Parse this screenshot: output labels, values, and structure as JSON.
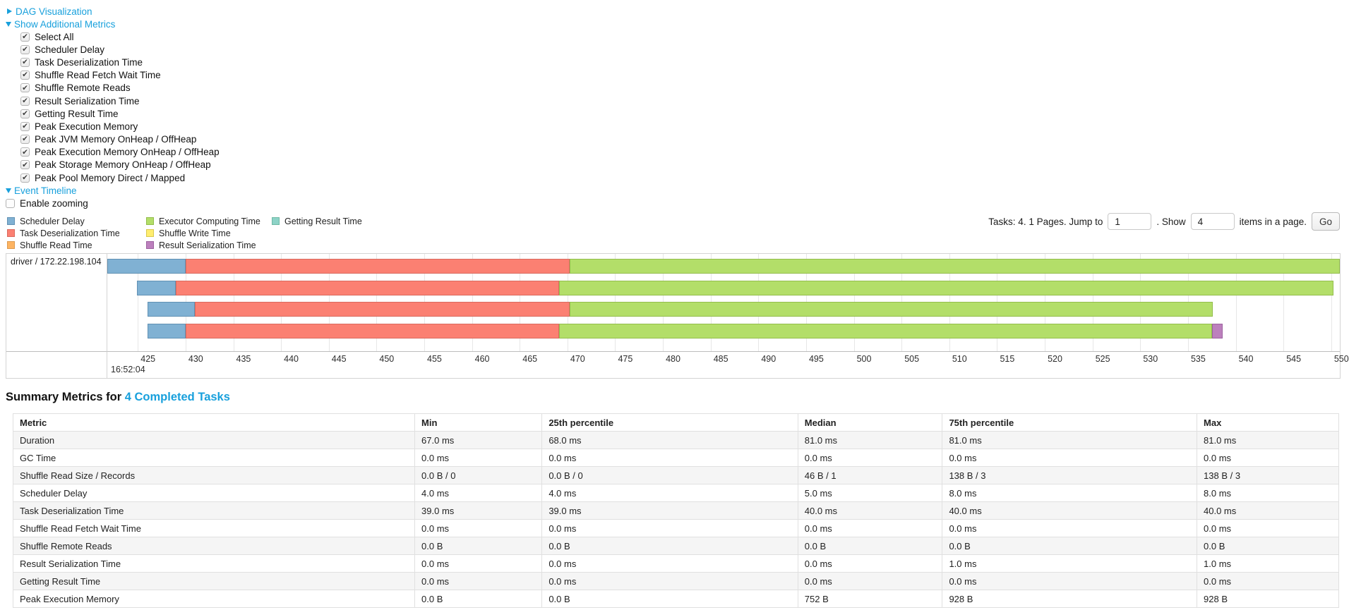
{
  "toggles": {
    "dag": "DAG Visualization",
    "additional_metrics": "Show Additional Metrics",
    "event_timeline": "Event Timeline"
  },
  "metrics_panel": {
    "items": [
      "Select All",
      "Scheduler Delay",
      "Task Deserialization Time",
      "Shuffle Read Fetch Wait Time",
      "Shuffle Remote Reads",
      "Result Serialization Time",
      "Getting Result Time",
      "Peak Execution Memory",
      "Peak JVM Memory OnHeap / OffHeap",
      "Peak Execution Memory OnHeap / OffHeap",
      "Peak Storage Memory OnHeap / OffHeap",
      "Peak Pool Memory Direct / Mapped"
    ],
    "all_checked": true
  },
  "enable_zooming": {
    "label": "Enable zooming",
    "checked": false
  },
  "palette": {
    "scheduler_delay": {
      "fill": "#80b1d3",
      "stroke": "#6191b4"
    },
    "task_deserialization": {
      "fill": "#fb8072",
      "stroke": "#d96a5e"
    },
    "shuffle_read": {
      "fill": "#fdb462",
      "stroke": "#dd9a4f"
    },
    "executor_computing": {
      "fill": "#b3de69",
      "stroke": "#93bd4c"
    },
    "shuffle_write": {
      "fill": "#ffed6f",
      "stroke": "#d9c94f"
    },
    "result_serialization": {
      "fill": "#bc80bd",
      "stroke": "#9d62a0"
    },
    "getting_result": {
      "fill": "#8dd3c7",
      "stroke": "#6fb9a5"
    }
  },
  "legend": {
    "columns": [
      [
        {
          "key": "scheduler_delay",
          "label": "Scheduler Delay"
        },
        {
          "key": "task_deserialization",
          "label": "Task Deserialization Time"
        },
        {
          "key": "shuffle_read",
          "label": "Shuffle Read Time"
        }
      ],
      [
        {
          "key": "executor_computing",
          "label": "Executor Computing Time"
        },
        {
          "key": "shuffle_write",
          "label": "Shuffle Write Time"
        },
        {
          "key": "result_serialization",
          "label": "Result Serialization Time"
        }
      ],
      [
        {
          "key": "getting_result",
          "label": "Getting Result Time"
        }
      ]
    ]
  },
  "pagination": {
    "prefix": "Tasks: 4. 1 Pages. Jump to",
    "jump_value": "1",
    "mid": ". Show",
    "show_value": "4",
    "suffix": "items in a page.",
    "go_label": "Go"
  },
  "timeline": {
    "row_label": "driver / 172.22.198.104",
    "axis": {
      "min": 421.8,
      "max": 550.9,
      "ticks": [
        425,
        430,
        435,
        440,
        445,
        450,
        455,
        460,
        465,
        470,
        475,
        480,
        485,
        490,
        495,
        500,
        505,
        510,
        515,
        520,
        525,
        530,
        535,
        540,
        545,
        550
      ],
      "sub_label": "16:52:04"
    },
    "tasks": [
      {
        "segments": [
          {
            "key": "scheduler_delay",
            "start": 421.8,
            "end": 430.0
          },
          {
            "key": "task_deserialization",
            "start": 430.0,
            "end": 470.2
          },
          {
            "key": "executor_computing",
            "start": 470.2,
            "end": 550.9
          }
        ]
      },
      {
        "segments": [
          {
            "key": "scheduler_delay",
            "start": 424.9,
            "end": 429.0
          },
          {
            "key": "task_deserialization",
            "start": 429.0,
            "end": 469.1
          },
          {
            "key": "executor_computing",
            "start": 469.1,
            "end": 550.2
          }
        ]
      },
      {
        "segments": [
          {
            "key": "scheduler_delay",
            "start": 426.0,
            "end": 431.0
          },
          {
            "key": "task_deserialization",
            "start": 431.0,
            "end": 470.2
          },
          {
            "key": "executor_computing",
            "start": 470.2,
            "end": 537.6
          }
        ]
      },
      {
        "segments": [
          {
            "key": "scheduler_delay",
            "start": 426.0,
            "end": 430.0
          },
          {
            "key": "task_deserialization",
            "start": 430.0,
            "end": 469.1
          },
          {
            "key": "executor_computing",
            "start": 469.1,
            "end": 537.5
          },
          {
            "key": "result_serialization",
            "start": 537.5,
            "end": 538.6
          }
        ]
      }
    ]
  },
  "summary": {
    "title_prefix": "Summary Metrics for",
    "title_link": "4 Completed Tasks",
    "table": {
      "headers": [
        "Metric",
        "Min",
        "25th percentile",
        "Median",
        "75th percentile",
        "Max"
      ],
      "rows": [
        [
          "Duration",
          "67.0 ms",
          "68.0 ms",
          "81.0 ms",
          "81.0 ms",
          "81.0 ms"
        ],
        [
          "GC Time",
          "0.0 ms",
          "0.0 ms",
          "0.0 ms",
          "0.0 ms",
          "0.0 ms"
        ],
        [
          "Shuffle Read Size / Records",
          "0.0 B / 0",
          "0.0 B / 0",
          "46 B / 1",
          "138 B / 3",
          "138 B / 3"
        ],
        [
          "Scheduler Delay",
          "4.0 ms",
          "4.0 ms",
          "5.0 ms",
          "8.0 ms",
          "8.0 ms"
        ],
        [
          "Task Deserialization Time",
          "39.0 ms",
          "39.0 ms",
          "40.0 ms",
          "40.0 ms",
          "40.0 ms"
        ],
        [
          "Shuffle Read Fetch Wait Time",
          "0.0 ms",
          "0.0 ms",
          "0.0 ms",
          "0.0 ms",
          "0.0 ms"
        ],
        [
          "Shuffle Remote Reads",
          "0.0 B",
          "0.0 B",
          "0.0 B",
          "0.0 B",
          "0.0 B"
        ],
        [
          "Result Serialization Time",
          "0.0 ms",
          "0.0 ms",
          "0.0 ms",
          "1.0 ms",
          "1.0 ms"
        ],
        [
          "Getting Result Time",
          "0.0 ms",
          "0.0 ms",
          "0.0 ms",
          "0.0 ms",
          "0.0 ms"
        ],
        [
          "Peak Execution Memory",
          "0.0 B",
          "0.0 B",
          "752 B",
          "928 B",
          "928 B"
        ]
      ]
    }
  }
}
